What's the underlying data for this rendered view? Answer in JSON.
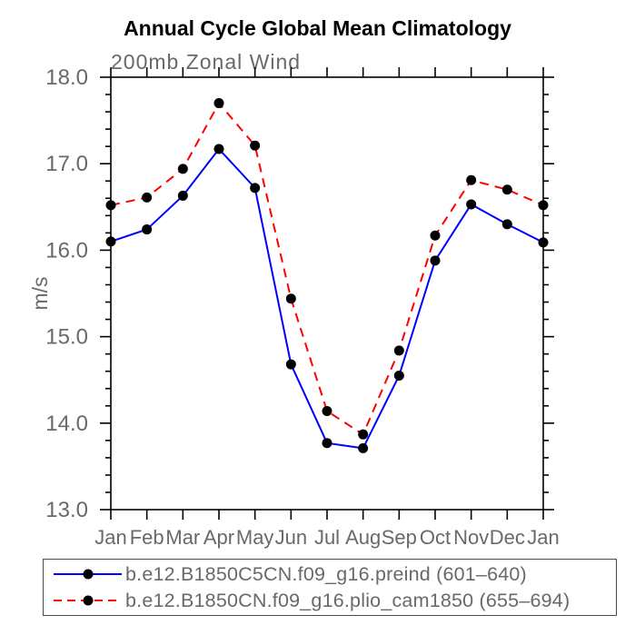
{
  "header": {
    "title": "Annual Cycle Global Mean Climatology",
    "subtitle": "200mb Zonal Wind"
  },
  "chart_data": {
    "type": "line",
    "title": "Annual Cycle Global Mean Climatology",
    "subtitle": "200mb Zonal Wind",
    "xlabel": "",
    "ylabel": "m/s",
    "x_tick_labels": [
      "Jan",
      "Feb",
      "Mar",
      "Apr",
      "May",
      "Jun",
      "Jul",
      "Aug",
      "Sep",
      "Oct",
      "Nov",
      "Dec",
      "Jan"
    ],
    "y_tick_labels": [
      "13.0",
      "14.0",
      "15.0",
      "16.0",
      "17.0",
      "18.0"
    ],
    "ylim": [
      13.0,
      18.0
    ],
    "y_major_interval": 1.0,
    "y_minor_interval": 0.2,
    "grid": false,
    "frame": "box-with-outward-ticks",
    "legend_position": "bottom-left-box",
    "series": [
      {
        "name": "b.e12.B1850C5CN.f09_g16.preind (601–640)",
        "color": "#0000ff",
        "line_style": "solid",
        "marker": "filled-black-circle",
        "values": [
          16.1,
          16.24,
          16.63,
          17.17,
          16.72,
          14.68,
          13.77,
          13.71,
          14.55,
          15.88,
          16.53,
          16.3,
          16.09
        ]
      },
      {
        "name": "b.e12.B1850CN.f09_g16.plio_cam1850 (655–694)",
        "color": "#ff0000",
        "line_style": "dashed",
        "marker": "filled-black-circle",
        "values": [
          16.52,
          16.61,
          16.94,
          17.7,
          17.21,
          15.44,
          14.14,
          13.87,
          14.84,
          16.17,
          16.81,
          16.7,
          16.52
        ]
      }
    ]
  },
  "legend": {
    "items": [
      {
        "label": "b.e12.B1850C5CN.f09_g16.preind (601–640)",
        "color": "#0000ff",
        "style": "solid"
      },
      {
        "label": "b.e12.B1850CN.f09_g16.plio_cam1850 (655–694)",
        "color": "#ff0000",
        "style": "dashed"
      }
    ]
  },
  "colors": {
    "series_blue": "#0000ff",
    "series_red": "#ff0000",
    "marker": "#000000",
    "axis": "#000000",
    "label_gray": "#696969",
    "title_black": "#000000",
    "background": "#ffffff"
  }
}
